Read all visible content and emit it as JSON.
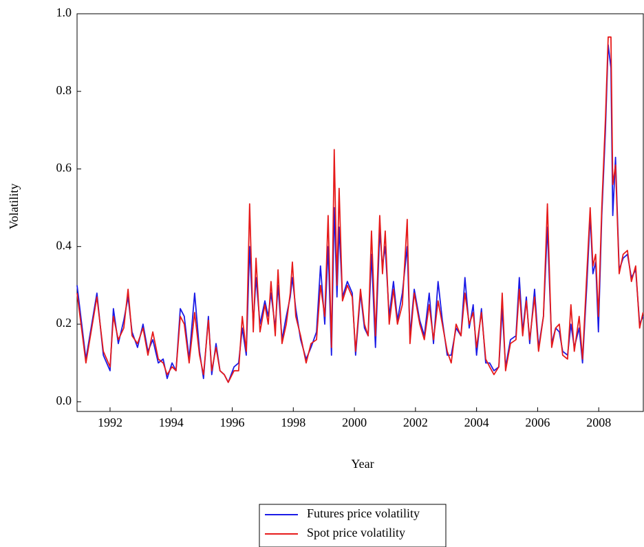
{
  "chart_data": {
    "type": "line",
    "x_label": "Year",
    "y_label": "Volatility",
    "x": [
      1990.92,
      1991.21,
      1991.57,
      1991.78,
      1992.0,
      1992.11,
      1992.27,
      1992.45,
      1992.59,
      1992.72,
      1992.9,
      1993.08,
      1993.24,
      1993.4,
      1993.58,
      1993.74,
      1993.87,
      1994.03,
      1994.16,
      1994.3,
      1994.43,
      1994.59,
      1994.77,
      1994.93,
      1995.06,
      1995.22,
      1995.33,
      1995.47,
      1995.6,
      1995.74,
      1995.87,
      1996.06,
      1996.21,
      1996.33,
      1996.46,
      1996.57,
      1996.69,
      1996.78,
      1996.91,
      1997.07,
      1997.18,
      1997.27,
      1997.41,
      1997.5,
      1997.63,
      1997.77,
      1997.9,
      1997.97,
      1998.08,
      1998.24,
      1998.42,
      1998.58,
      1998.76,
      1998.89,
      1999.03,
      1999.14,
      1999.25,
      1999.34,
      1999.43,
      1999.5,
      1999.61,
      1999.77,
      1999.93,
      2000.04,
      2000.2,
      2000.33,
      2000.45,
      2000.56,
      2000.69,
      2000.83,
      2000.92,
      2001.01,
      2001.14,
      2001.28,
      2001.41,
      2001.57,
      2001.73,
      2001.82,
      2001.96,
      2002.14,
      2002.29,
      2002.45,
      2002.59,
      2002.74,
      2002.88,
      2003.04,
      2003.17,
      2003.33,
      2003.49,
      2003.62,
      2003.76,
      2003.89,
      2004.0,
      2004.16,
      2004.3,
      2004.43,
      2004.57,
      2004.73,
      2004.84,
      2004.95,
      2005.11,
      2005.29,
      2005.4,
      2005.51,
      2005.63,
      2005.74,
      2005.9,
      2006.03,
      2006.19,
      2006.32,
      2006.46,
      2006.59,
      2006.71,
      2006.82,
      2006.98,
      2007.09,
      2007.2,
      2007.36,
      2007.47,
      2007.61,
      2007.72,
      2007.81,
      2007.9,
      2007.99,
      2008.1,
      2008.22,
      2008.31,
      2008.4,
      2008.46,
      2008.55,
      2008.67,
      2008.8,
      2008.94,
      2009.07,
      2009.21,
      2009.34,
      2009.45
    ],
    "series": [
      {
        "name": "Futures price volatility",
        "color": "#1a1ae6",
        "values": [
          0.3,
          0.11,
          0.28,
          0.12,
          0.08,
          0.24,
          0.15,
          0.21,
          0.27,
          0.18,
          0.14,
          0.2,
          0.13,
          0.16,
          0.1,
          0.11,
          0.06,
          0.1,
          0.08,
          0.24,
          0.22,
          0.11,
          0.28,
          0.13,
          0.06,
          0.22,
          0.07,
          0.15,
          0.08,
          0.07,
          0.05,
          0.09,
          0.1,
          0.19,
          0.12,
          0.4,
          0.2,
          0.32,
          0.2,
          0.26,
          0.22,
          0.28,
          0.19,
          0.3,
          0.16,
          0.22,
          0.27,
          0.32,
          0.24,
          0.16,
          0.11,
          0.14,
          0.18,
          0.35,
          0.2,
          0.4,
          0.12,
          0.5,
          0.27,
          0.45,
          0.27,
          0.31,
          0.28,
          0.12,
          0.28,
          0.19,
          0.17,
          0.38,
          0.14,
          0.44,
          0.35,
          0.4,
          0.22,
          0.31,
          0.21,
          0.28,
          0.4,
          0.17,
          0.29,
          0.21,
          0.17,
          0.28,
          0.15,
          0.31,
          0.21,
          0.12,
          0.12,
          0.19,
          0.17,
          0.32,
          0.19,
          0.25,
          0.12,
          0.24,
          0.1,
          0.1,
          0.08,
          0.09,
          0.24,
          0.09,
          0.16,
          0.17,
          0.32,
          0.18,
          0.27,
          0.15,
          0.29,
          0.14,
          0.22,
          0.45,
          0.15,
          0.19,
          0.18,
          0.13,
          0.12,
          0.2,
          0.14,
          0.19,
          0.1,
          0.3,
          0.48,
          0.33,
          0.36,
          0.18,
          0.48,
          0.7,
          0.92,
          0.86,
          0.48,
          0.63,
          0.34,
          0.37,
          0.38,
          0.32,
          0.34,
          0.2,
          0.22
        ]
      },
      {
        "name": "Spot price volatility",
        "color": "#e61a1a",
        "values": [
          0.28,
          0.1,
          0.27,
          0.13,
          0.09,
          0.22,
          0.16,
          0.19,
          0.29,
          0.17,
          0.15,
          0.19,
          0.12,
          0.18,
          0.11,
          0.1,
          0.07,
          0.09,
          0.08,
          0.22,
          0.2,
          0.1,
          0.23,
          0.12,
          0.07,
          0.21,
          0.08,
          0.14,
          0.08,
          0.07,
          0.05,
          0.08,
          0.08,
          0.22,
          0.13,
          0.51,
          0.18,
          0.37,
          0.18,
          0.25,
          0.2,
          0.31,
          0.17,
          0.34,
          0.15,
          0.2,
          0.28,
          0.36,
          0.22,
          0.17,
          0.1,
          0.15,
          0.16,
          0.3,
          0.22,
          0.48,
          0.14,
          0.65,
          0.3,
          0.55,
          0.26,
          0.3,
          0.27,
          0.13,
          0.29,
          0.2,
          0.17,
          0.44,
          0.17,
          0.48,
          0.33,
          0.44,
          0.2,
          0.29,
          0.2,
          0.25,
          0.47,
          0.15,
          0.28,
          0.2,
          0.16,
          0.25,
          0.16,
          0.26,
          0.2,
          0.13,
          0.1,
          0.2,
          0.17,
          0.28,
          0.2,
          0.23,
          0.14,
          0.23,
          0.11,
          0.09,
          0.07,
          0.09,
          0.28,
          0.08,
          0.15,
          0.16,
          0.29,
          0.17,
          0.26,
          0.16,
          0.27,
          0.13,
          0.22,
          0.51,
          0.14,
          0.19,
          0.2,
          0.12,
          0.11,
          0.25,
          0.13,
          0.22,
          0.11,
          0.33,
          0.5,
          0.35,
          0.38,
          0.22,
          0.5,
          0.73,
          0.94,
          0.94,
          0.56,
          0.61,
          0.33,
          0.38,
          0.39,
          0.31,
          0.35,
          0.19,
          0.23
        ]
      }
    ],
    "xlim": [
      1990.92,
      2009.46
    ],
    "xticks": [
      1992,
      1994,
      1996,
      1998,
      2000,
      2002,
      2004,
      2006,
      2008
    ],
    "ylim": [
      -0.025,
      1.0
    ],
    "yticks": [
      {
        "value": 0,
        "label": "0.0"
      },
      0.2,
      0.4,
      0.6,
      0.8,
      {
        "value": 1,
        "label": "1.0"
      }
    ],
    "legend": "bottom"
  }
}
